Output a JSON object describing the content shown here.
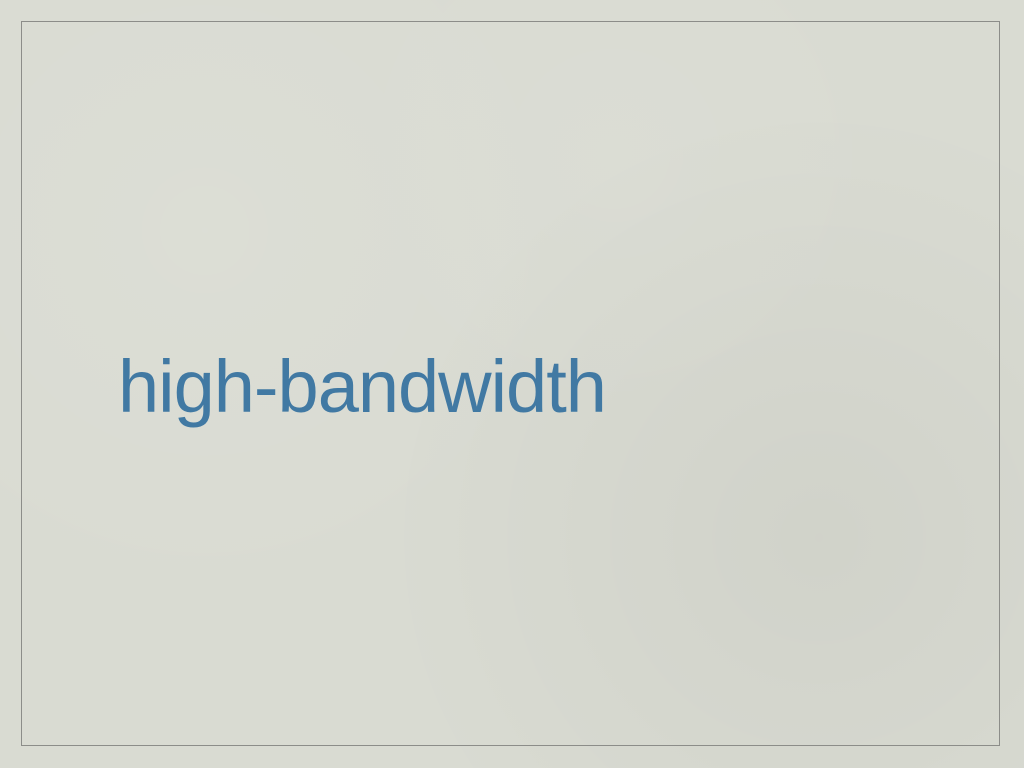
{
  "slide": {
    "text": "high-bandwidth"
  },
  "colors": {
    "background": "#d9dbd2",
    "frame_border": "#8c8d89",
    "text": "#4179a3"
  }
}
